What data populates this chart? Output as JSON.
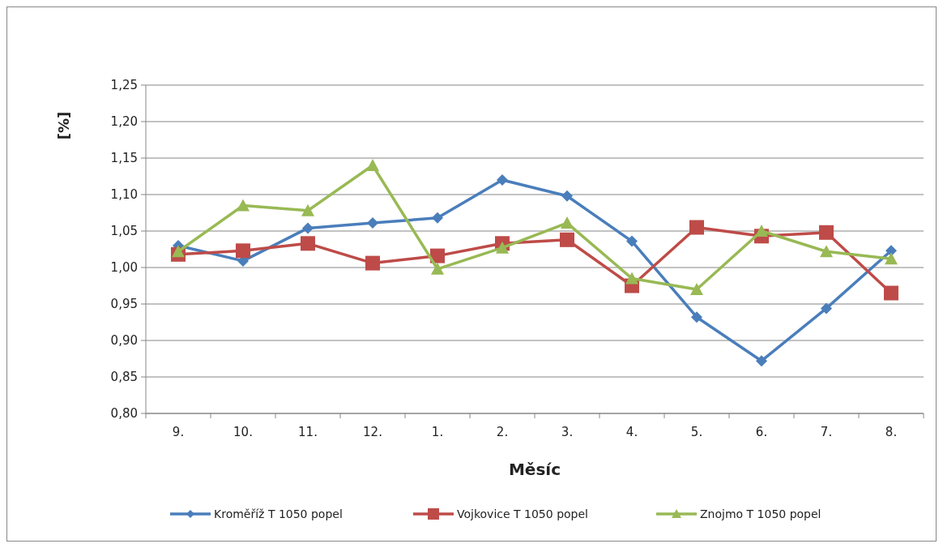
{
  "chart_data": {
    "type": "line",
    "xlabel": "Měsíc",
    "ylabel": "[%]",
    "categories": [
      "9.",
      "10.",
      "11.",
      "12.",
      "1.",
      "2.",
      "3.",
      "4.",
      "5.",
      "6.",
      "7.",
      "8."
    ],
    "series": [
      {
        "name": "Kroměříž T 1050 popel",
        "color": "#4a7ebb",
        "marker": "diamond",
        "values": [
          1.03,
          1.009,
          1.054,
          1.061,
          1.068,
          1.12,
          1.098,
          1.036,
          0.932,
          0.872,
          0.944,
          1.023
        ]
      },
      {
        "name": "Vojkovice T 1050 popel",
        "color": "#be4b48",
        "marker": "square",
        "values": [
          1.018,
          1.023,
          1.033,
          1.006,
          1.016,
          1.033,
          1.038,
          0.975,
          1.055,
          1.043,
          1.048,
          0.965
        ]
      },
      {
        "name": "Znojmo T 1050 popel",
        "color": "#98b954",
        "marker": "triangle",
        "values": [
          1.022,
          1.085,
          1.078,
          1.14,
          0.998,
          1.027,
          1.061,
          0.985,
          0.97,
          1.05,
          1.022,
          1.012
        ]
      }
    ],
    "ylim": [
      0.8,
      1.25
    ],
    "yticks": [
      {
        "value": 0.8,
        "label": "0,80"
      },
      {
        "value": 0.85,
        "label": "0,85"
      },
      {
        "value": 0.9,
        "label": "0,90"
      },
      {
        "value": 0.95,
        "label": "0,95"
      },
      {
        "value": 1.0,
        "label": "1,00"
      },
      {
        "value": 1.05,
        "label": "1,05"
      },
      {
        "value": 1.1,
        "label": "1,10"
      },
      {
        "value": 1.15,
        "label": "1,15"
      },
      {
        "value": 1.2,
        "label": "1,20"
      },
      {
        "value": 1.25,
        "label": "1,25"
      }
    ],
    "grid": "y",
    "legend": "bottom"
  }
}
